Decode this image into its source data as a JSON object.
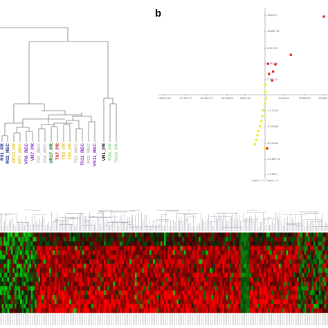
{
  "figure": {
    "panel_b_label": "b",
    "background": "#ffffff"
  },
  "dendrogram": {
    "line_color": "#7a7a7a",
    "leaves": [
      {
        "label": "R01_PR",
        "color": "#1c2a8c"
      },
      {
        "label": "R02_REC",
        "color": "#1c2a8c"
      },
      {
        "label": "VR13_PR",
        "color": "#e8c21c"
      },
      {
        "label": "VR7_REC",
        "color": "#e8c21c"
      },
      {
        "label": "VR9_REC",
        "color": "#8a2bd0"
      },
      {
        "label": "VR7_PR",
        "color": "#8a2bd0"
      },
      {
        "label": "T03_REC",
        "color": "#b9b9b9"
      },
      {
        "label": "T04_REC",
        "color": "#b9b9b9"
      },
      {
        "label": "VR17_PR",
        "color": "#166b16"
      },
      {
        "label": "T07_PR",
        "color": "#d21a1a"
      },
      {
        "label": "T03_PR",
        "color": "#e8c21c"
      },
      {
        "label": "T04_PR",
        "color": "#e8c21c"
      },
      {
        "label": "T03_REC",
        "color": "#b9b9b9"
      },
      {
        "label": "T011_REC",
        "color": "#8a2bd0"
      },
      {
        "label": "R03_REC",
        "color": "#b9b9b9"
      },
      {
        "label": "VR11_REC",
        "color": "#8a2bd0"
      },
      {
        "label": "VR1_PR",
        "color": "#111111"
      },
      {
        "label": "R06_PR",
        "color": "#8fd98f"
      },
      {
        "label": "T010_PR",
        "color": "#8fd98f"
      }
    ]
  },
  "scatter": {
    "x_ticks": [
      "-34.670,21",
      "-27.295,17",
      "-20.442,13",
      "-13.628,09",
      "-6.814,04",
      "6.814,04",
      "13.628,09",
      "20.442,1"
    ],
    "y_ticks": [
      "13.859,7",
      "12.687,78",
      "8.515,82",
      "6.343,89",
      "2.171,94",
      "-2.171,94",
      "-6.343,89",
      "-8.515,82",
      "-12.687,78",
      "-13.859,7"
    ],
    "axis_note": "1 axis = 1 / 1 axis = 1",
    "colors": {
      "red_group": "#e01818",
      "yellow_group": "#f2ea1a"
    },
    "chart_data": {
      "type": "scatter",
      "series": [
        {
          "values_x": [
            25500,
            11200,
            1300,
            1700,
            3100,
            3500,
            4500,
            900
          ],
          "values_y": [
            13100,
            6700,
            5200,
            3500,
            2400,
            3900,
            5100,
            -9000
          ]
        },
        {
          "values_x": [
            100,
            200,
            500,
            -200,
            -800,
            -1200,
            -1600,
            -2200,
            -2800,
            -3300,
            -3900,
            -4400,
            -100
          ],
          "values_y": [
            1700,
            500,
            -600,
            -1500,
            -2600,
            -3600,
            -4400,
            -5300,
            -6100,
            -6800,
            -7600,
            -8300,
            -9000
          ]
        }
      ]
    }
  },
  "heatmap": {
    "colors": {
      "high": "#ff1a1a",
      "mid": "#1a0000",
      "low": "#1fd11f"
    }
  }
}
